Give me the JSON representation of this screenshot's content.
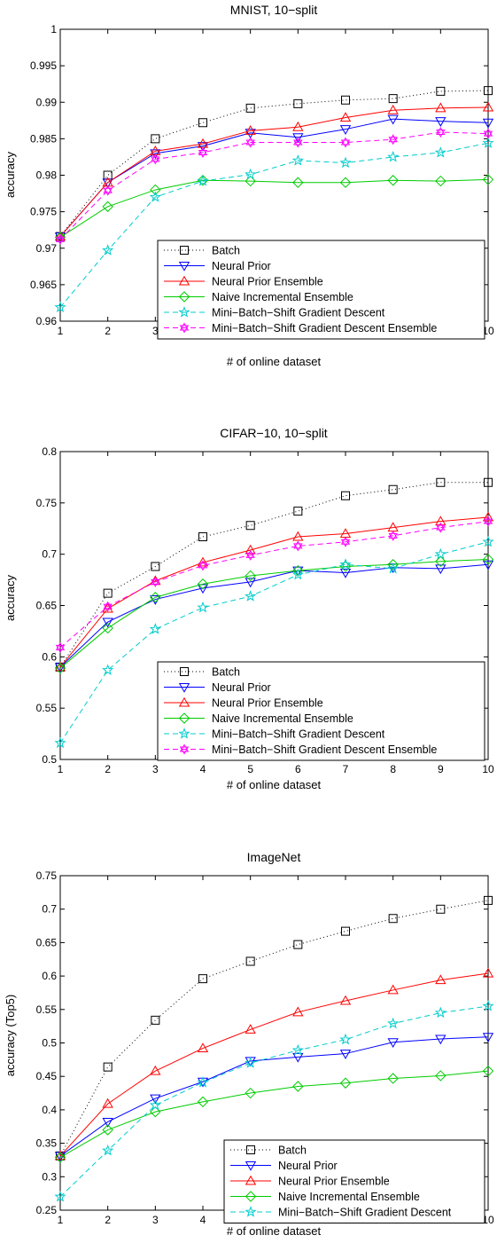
{
  "chart_data": [
    {
      "type": "line",
      "title": "MNIST, 10−split",
      "xlabel": "# of online dataset",
      "ylabel": "accuracy",
      "xlim": [
        1,
        10
      ],
      "ylim": [
        0.96,
        1
      ],
      "x": [
        1,
        2,
        3,
        4,
        5,
        6,
        7,
        8,
        9,
        10
      ],
      "xticks": [
        "1",
        "2",
        "3",
        "4",
        "5",
        "6",
        "7",
        "8",
        "9",
        "10"
      ],
      "yticks": [
        "0.96",
        "0.965",
        "0.97",
        "0.975",
        "0.98",
        "0.985",
        "0.99",
        "0.995",
        "1"
      ],
      "legend_position": "bottom-right",
      "series": [
        {
          "name": "Batch",
          "color": "#000000",
          "dash": "1,3",
          "marker": "square",
          "values": [
            0.9716,
            0.98,
            0.985,
            0.9872,
            0.9892,
            0.9898,
            0.9903,
            0.9905,
            0.9915,
            0.9916
          ]
        },
        {
          "name": "Neural Prior",
          "color": "#0000ff",
          "dash": "",
          "marker": "triangle-down",
          "values": [
            0.9716,
            0.979,
            0.983,
            0.984,
            0.9858,
            0.9852,
            0.9863,
            0.9877,
            0.9874,
            0.9872
          ]
        },
        {
          "name": "Neural Prior Ensemble",
          "color": "#ff0000",
          "dash": "",
          "marker": "triangle-up",
          "values": [
            0.9716,
            0.979,
            0.9833,
            0.9843,
            0.9861,
            0.9866,
            0.9879,
            0.9889,
            0.9892,
            0.9893
          ]
        },
        {
          "name": "Naive Incremental Ensemble",
          "color": "#00cc00",
          "dash": "",
          "marker": "diamond",
          "values": [
            0.9715,
            0.9757,
            0.978,
            0.9793,
            0.9792,
            0.979,
            0.979,
            0.9793,
            0.9792,
            0.9794
          ]
        },
        {
          "name": "Mini−Batch−Shift Gradient Descent",
          "color": "#00cccc",
          "dash": "6,4",
          "marker": "star",
          "values": [
            0.9619,
            0.9697,
            0.977,
            0.9792,
            0.9801,
            0.982,
            0.9817,
            0.9825,
            0.9831,
            0.9844
          ]
        },
        {
          "name": "Mini−Batch−Shift Gradient Descent Ensemble",
          "color": "#ff00ff",
          "dash": "6,4",
          "marker": "hexagram",
          "values": [
            0.9712,
            0.9779,
            0.9822,
            0.9831,
            0.9845,
            0.9845,
            0.9845,
            0.9849,
            0.9859,
            0.9857
          ]
        }
      ]
    },
    {
      "type": "line",
      "title": "CIFAR−10, 10−split",
      "xlabel": "# of online dataset",
      "ylabel": "accuracy",
      "xlim": [
        1,
        10
      ],
      "ylim": [
        0.5,
        0.8
      ],
      "x": [
        1,
        2,
        3,
        4,
        5,
        6,
        7,
        8,
        9,
        10
      ],
      "xticks": [
        "1",
        "2",
        "3",
        "4",
        "5",
        "6",
        "7",
        "8",
        "9",
        "10"
      ],
      "yticks": [
        "0.5",
        "0.55",
        "0.6",
        "0.65",
        "0.7",
        "0.75",
        "0.8"
      ],
      "legend_position": "bottom-right",
      "series": [
        {
          "name": "Batch",
          "color": "#000000",
          "dash": "1,3",
          "marker": "square",
          "values": [
            0.59,
            0.662,
            0.688,
            0.717,
            0.728,
            0.742,
            0.757,
            0.763,
            0.77,
            0.77
          ]
        },
        {
          "name": "Neural Prior",
          "color": "#0000ff",
          "dash": "",
          "marker": "triangle-down",
          "values": [
            0.59,
            0.634,
            0.656,
            0.667,
            0.673,
            0.684,
            0.682,
            0.687,
            0.686,
            0.69
          ]
        },
        {
          "name": "Neural Prior Ensemble",
          "color": "#ff0000",
          "dash": "",
          "marker": "triangle-up",
          "values": [
            0.59,
            0.647,
            0.674,
            0.692,
            0.704,
            0.717,
            0.72,
            0.726,
            0.732,
            0.736
          ]
        },
        {
          "name": "Naive Incremental Ensemble",
          "color": "#00cc00",
          "dash": "",
          "marker": "diamond",
          "values": [
            0.589,
            0.628,
            0.658,
            0.671,
            0.679,
            0.684,
            0.688,
            0.69,
            0.693,
            0.695
          ]
        },
        {
          "name": "Mini−Batch−Shift Gradient Descent",
          "color": "#00cccc",
          "dash": "6,4",
          "marker": "star",
          "values": [
            0.516,
            0.587,
            0.627,
            0.648,
            0.659,
            0.68,
            0.69,
            0.686,
            0.7,
            0.712
          ]
        },
        {
          "name": "Mini−Batch−Shift Gradient Descent Ensemble",
          "color": "#ff00ff",
          "dash": "6,4",
          "marker": "hexagram",
          "values": [
            0.609,
            0.649,
            0.673,
            0.689,
            0.699,
            0.708,
            0.712,
            0.718,
            0.726,
            0.732
          ]
        }
      ]
    },
    {
      "type": "line",
      "title": "ImageNet",
      "xlabel": "# of online dataset",
      "ylabel": "accuracy (Top5)",
      "xlim": [
        1,
        10
      ],
      "ylim": [
        0.25,
        0.75
      ],
      "x": [
        1,
        2,
        3,
        4,
        5,
        6,
        7,
        8,
        9,
        10
      ],
      "xticks": [
        "1",
        "2",
        "3",
        "4",
        "5",
        "6",
        "7",
        "8",
        "9",
        "10"
      ],
      "yticks": [
        "0.25",
        "0.3",
        "0.35",
        "0.4",
        "0.45",
        "0.5",
        "0.55",
        "0.6",
        "0.65",
        "0.7",
        "0.75"
      ],
      "legend_position": "bottom-right",
      "series": [
        {
          "name": "Batch",
          "color": "#000000",
          "dash": "1,3",
          "marker": "square",
          "values": [
            0.331,
            0.464,
            0.534,
            0.596,
            0.622,
            0.647,
            0.667,
            0.686,
            0.7,
            0.713
          ]
        },
        {
          "name": "Neural Prior",
          "color": "#0000ff",
          "dash": "",
          "marker": "triangle-down",
          "values": [
            0.331,
            0.382,
            0.417,
            0.442,
            0.473,
            0.479,
            0.484,
            0.501,
            0.506,
            0.509
          ]
        },
        {
          "name": "Neural Prior Ensemble",
          "color": "#ff0000",
          "dash": "",
          "marker": "triangle-up",
          "values": [
            0.331,
            0.409,
            0.458,
            0.492,
            0.52,
            0.546,
            0.563,
            0.579,
            0.594,
            0.604
          ]
        },
        {
          "name": "Naive Incremental Ensemble",
          "color": "#00cc00",
          "dash": "",
          "marker": "diamond",
          "values": [
            0.329,
            0.37,
            0.397,
            0.412,
            0.425,
            0.435,
            0.44,
            0.447,
            0.451,
            0.458
          ]
        },
        {
          "name": "Mini−Batch−Shift Gradient Descent",
          "color": "#00cccc",
          "dash": "6,4",
          "marker": "star",
          "values": [
            0.27,
            0.339,
            0.407,
            0.441,
            0.47,
            0.489,
            0.505,
            0.529,
            0.545,
            0.555
          ]
        }
      ]
    }
  ]
}
